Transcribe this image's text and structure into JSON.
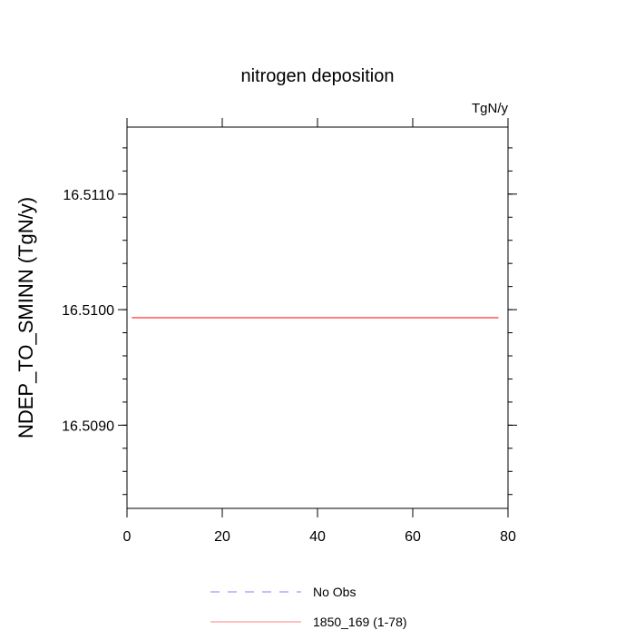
{
  "chart_data": {
    "type": "line",
    "title": "nitrogen deposition",
    "units_label": "TgN/y",
    "xlabel": "",
    "ylabel": "NDEP_TO_SMINN  (TgN/y)",
    "xlim": [
      0,
      80
    ],
    "ylim": [
      16.50828,
      16.51158
    ],
    "x_ticks": [
      0,
      20,
      40,
      60,
      80
    ],
    "x_tick_labels": [
      "0",
      "20",
      "40",
      "60",
      "80"
    ],
    "y_ticks": [
      16.509,
      16.51,
      16.511
    ],
    "y_tick_labels": [
      "16.5090",
      "16.5100",
      "16.5110"
    ],
    "y_minor_step": 0.0002,
    "grid": false,
    "legend_placement": "bottom",
    "series": [
      {
        "name": "No Obs",
        "color": "#8080ff",
        "dash": "dashed",
        "x": [],
        "y": []
      },
      {
        "name": "1850_169 (1-78)",
        "color": "#ff7f7f",
        "dash": "solid",
        "x": [
          1,
          78
        ],
        "y": [
          16.50993,
          16.50993
        ]
      }
    ]
  }
}
